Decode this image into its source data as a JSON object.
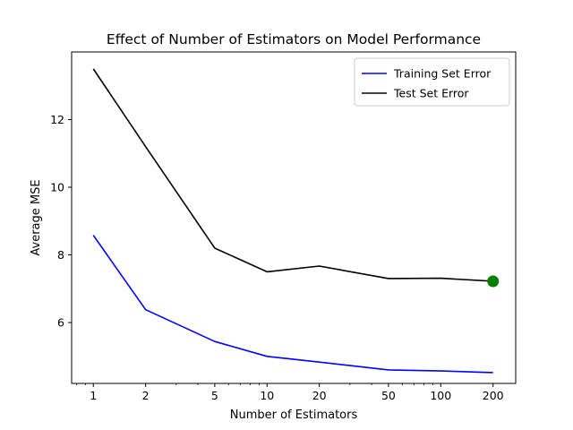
{
  "chart_data": {
    "type": "line",
    "title": "Effect of Number of Estimators on Model Performance",
    "xlabel": "Number of Estimators",
    "ylabel": "Average MSE",
    "xscale": "log",
    "xlim": [
      0.75,
      270
    ],
    "ylim": [
      4.2,
      14.0
    ],
    "xticks": [
      1,
      2,
      5,
      10,
      20,
      50,
      100,
      200
    ],
    "yticks": [
      6,
      8,
      10,
      12
    ],
    "x": [
      1,
      2,
      5,
      10,
      20,
      50,
      100,
      200
    ],
    "series": [
      {
        "name": "Training Set Error",
        "color": "#0000ff",
        "values": [
          8.58,
          6.38,
          5.44,
          5.0,
          4.83,
          4.6,
          4.57,
          4.52
        ]
      },
      {
        "name": "Test Set Error",
        "color": "#000000",
        "values": [
          13.5,
          11.2,
          8.2,
          7.5,
          7.67,
          7.3,
          7.31,
          7.22
        ]
      }
    ],
    "highlight": {
      "x": 200,
      "y": 7.22,
      "color": "#008000"
    },
    "legend": "top-right",
    "grid": false
  }
}
